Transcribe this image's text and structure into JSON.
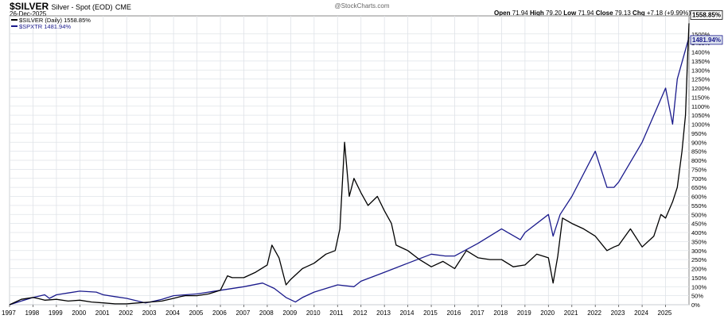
{
  "header": {
    "symbol": "$SILVER",
    "description": "Silver - Spot (EOD)",
    "exchange": "CME",
    "date": "26-Dec-2025",
    "brand": "@StockCharts.com",
    "open_label": "Open",
    "open": "71.94",
    "high_label": "High",
    "high": "79.20",
    "low_label": "Low",
    "low": "71.94",
    "close_label": "Close",
    "close": "79.13",
    "chg_label": "Chg",
    "chg": "+7.18 (+9.99%)"
  },
  "colors": {
    "silver": "#000000",
    "spxtr": "#1a1a8c",
    "grid": "#dfe3e8",
    "plot_bg": "#ffffff"
  },
  "chart_data": {
    "type": "line",
    "legend": [
      {
        "label": "$SILVER (Daily) 1558.85%",
        "color": "#000000"
      },
      {
        "label": "$SPXTR 1481.94%",
        "color": "#1a1a8c"
      }
    ],
    "end_labels": [
      "1558.85%",
      "1481.94%"
    ],
    "ylim": [
      0,
      1600
    ],
    "yticks": [
      0,
      50,
      100,
      150,
      200,
      250,
      300,
      350,
      400,
      450,
      500,
      550,
      600,
      650,
      700,
      750,
      800,
      850,
      900,
      950,
      1000,
      1050,
      1100,
      1150,
      1200,
      1250,
      1300,
      1350,
      1400,
      1450,
      1500
    ],
    "xlim": [
      1997.0,
      2026.0
    ],
    "xticks": [
      "1997",
      "1998",
      "1999",
      "2000",
      "2001",
      "2002",
      "2003",
      "2004",
      "2005",
      "2006",
      "2007",
      "2008",
      "2009",
      "2010",
      "2011",
      "2012",
      "2013",
      "2014",
      "2015",
      "2016",
      "2017",
      "2018",
      "2019",
      "2020",
      "2021",
      "2022",
      "2023",
      "2024",
      "2025"
    ],
    "series": [
      {
        "name": "$SILVER",
        "x": [
          1997.0,
          1997.5,
          1998.0,
          1998.2,
          1998.5,
          1999.0,
          1999.5,
          2000.0,
          2000.5,
          2001.0,
          2001.5,
          2002.0,
          2002.5,
          2003.0,
          2003.5,
          2004.0,
          2004.3,
          2004.5,
          2005.0,
          2005.5,
          2006.0,
          2006.3,
          2006.5,
          2007.0,
          2007.5,
          2008.0,
          2008.2,
          2008.5,
          2008.8,
          2009.0,
          2009.5,
          2010.0,
          2010.5,
          2010.9,
          2011.1,
          2011.3,
          2011.5,
          2011.7,
          2012.0,
          2012.3,
          2012.7,
          2013.0,
          2013.3,
          2013.5,
          2014.0,
          2014.5,
          2015.0,
          2015.5,
          2016.0,
          2016.5,
          2017.0,
          2017.5,
          2018.0,
          2018.5,
          2019.0,
          2019.5,
          2020.0,
          2020.2,
          2020.4,
          2020.6,
          2021.0,
          2021.5,
          2022.0,
          2022.5,
          2022.8,
          2023.0,
          2023.5,
          2024.0,
          2024.5,
          2024.8,
          2025.0,
          2025.3,
          2025.5,
          2025.7,
          2025.85,
          2025.95,
          2026.0
        ],
        "values": [
          0,
          30,
          40,
          35,
          25,
          30,
          20,
          25,
          15,
          10,
          5,
          5,
          10,
          15,
          20,
          35,
          45,
          50,
          50,
          60,
          80,
          160,
          150,
          150,
          180,
          220,
          330,
          260,
          110,
          140,
          200,
          230,
          280,
          300,
          420,
          900,
          600,
          700,
          620,
          550,
          600,
          520,
          450,
          330,
          300,
          250,
          210,
          240,
          200,
          300,
          260,
          250,
          250,
          210,
          220,
          280,
          260,
          120,
          270,
          480,
          450,
          420,
          380,
          300,
          320,
          330,
          420,
          320,
          380,
          500,
          480,
          570,
          650,
          850,
          1050,
          1400,
          1558.85
        ]
      },
      {
        "name": "$SPXTR",
        "x": [
          1997.0,
          1997.5,
          1998.0,
          1998.5,
          1998.7,
          1999.0,
          1999.5,
          2000.0,
          2000.7,
          2001.0,
          2001.5,
          2002.0,
          2002.8,
          2003.0,
          2003.5,
          2004.0,
          2005.0,
          2006.0,
          2007.0,
          2007.8,
          2008.3,
          2008.8,
          2009.2,
          2009.5,
          2010.0,
          2011.0,
          2011.7,
          2012.0,
          2013.0,
          2014.0,
          2015.0,
          2015.6,
          2016.0,
          2017.0,
          2018.0,
          2018.8,
          2019.0,
          2020.0,
          2020.2,
          2020.5,
          2021.0,
          2022.0,
          2022.5,
          2022.8,
          2023.0,
          2024.0,
          2025.0,
          2025.3,
          2025.5,
          2026.0
        ],
        "values": [
          0,
          20,
          40,
          55,
          35,
          55,
          65,
          75,
          70,
          55,
          45,
          35,
          10,
          15,
          30,
          50,
          60,
          80,
          100,
          120,
          90,
          40,
          15,
          40,
          70,
          110,
          100,
          130,
          180,
          230,
          280,
          270,
          270,
          340,
          420,
          360,
          400,
          500,
          380,
          500,
          600,
          850,
          650,
          650,
          680,
          900,
          1200,
          1000,
          1250,
          1481.94
        ]
      }
    ]
  }
}
